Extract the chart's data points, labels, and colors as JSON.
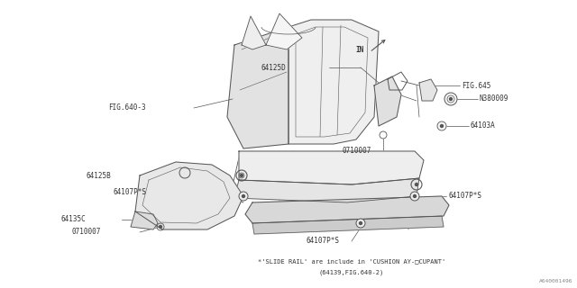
{
  "bg_color": "#ffffff",
  "fig_width": 6.4,
  "fig_height": 3.2,
  "dpi": 100,
  "watermark": "A640001496",
  "note_line1": "*'SLIDE RAIL' are include in 'CUSHION AY-□CUPANT'",
  "note_line2": "(64139,FIG.640-2)",
  "line_color": "#555555",
  "text_color": "#333333",
  "font_size": 5.5,
  "small_font": 5.0,
  "seat_fill": "#f0f0f0",
  "seat_fill2": "#e8e8e8",
  "seat_fill3": "#e0e0e0"
}
